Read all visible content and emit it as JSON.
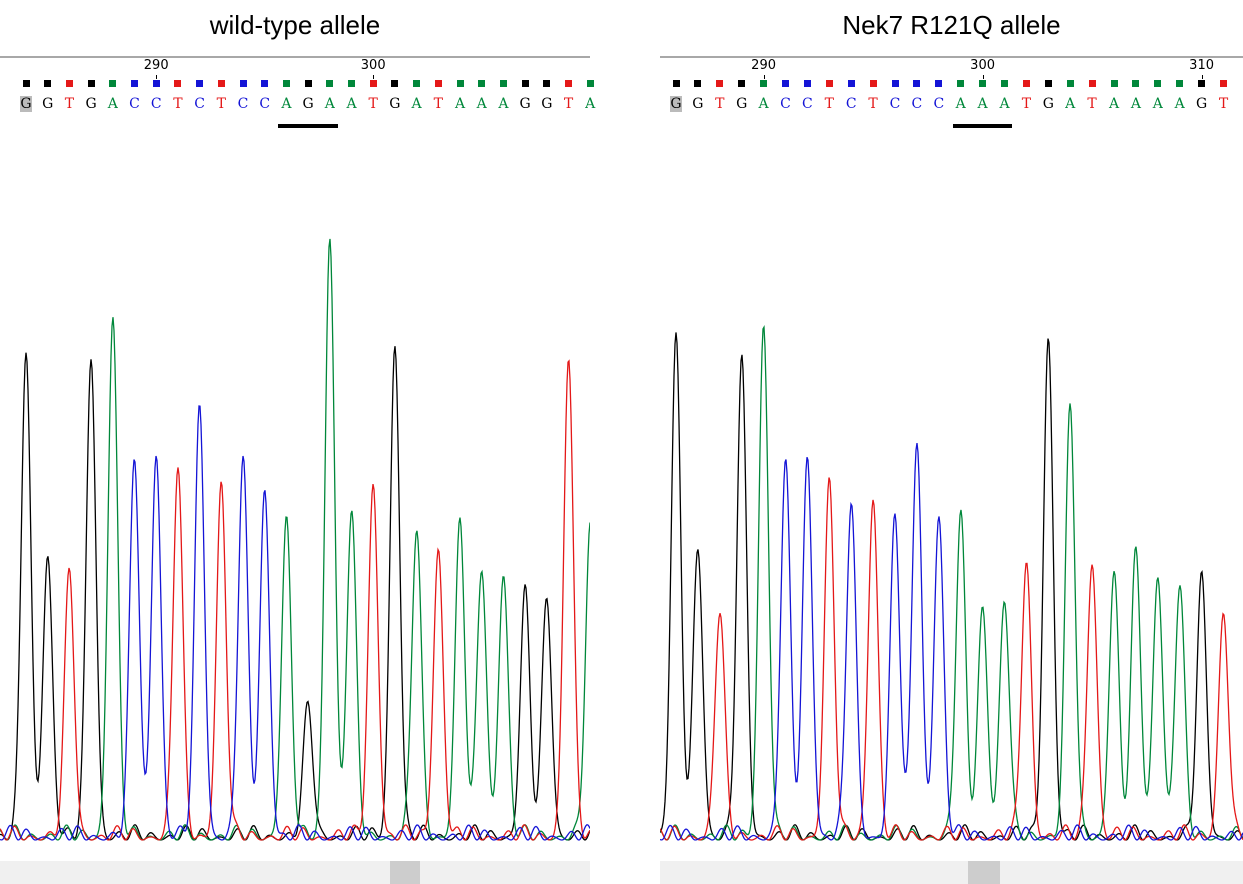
{
  "chart_data": [
    {
      "type": "line",
      "title": "wild-type allele",
      "position_labels": [
        290,
        300
      ],
      "bases": [
        "G",
        "G",
        "T",
        "G",
        "A",
        "C",
        "C",
        "T",
        "C",
        "T",
        "C",
        "C",
        "A",
        "G",
        "A",
        "A",
        "T",
        "G",
        "A",
        "T",
        "A",
        "A",
        "A",
        "G",
        "G",
        "T",
        "A"
      ],
      "highlighted_codon": [
        "A",
        "G",
        "A"
      ]
    },
    {
      "type": "line",
      "title": "Nek7 R121Q allele",
      "position_labels": [
        290,
        300,
        310
      ],
      "bases": [
        "G",
        "G",
        "T",
        "G",
        "A",
        "C",
        "C",
        "T",
        "C",
        "T",
        "C",
        "C",
        "C",
        "A",
        "A",
        "A",
        "T",
        "G",
        "A",
        "T",
        "A",
        "A",
        "A",
        "A",
        "G",
        "T"
      ],
      "highlighted_codon": [
        "A",
        "A",
        "A"
      ]
    }
  ],
  "base_colors": {
    "A": "#00873a",
    "C": "#1414d6",
    "G": "#000000",
    "T": "#e41818"
  }
}
